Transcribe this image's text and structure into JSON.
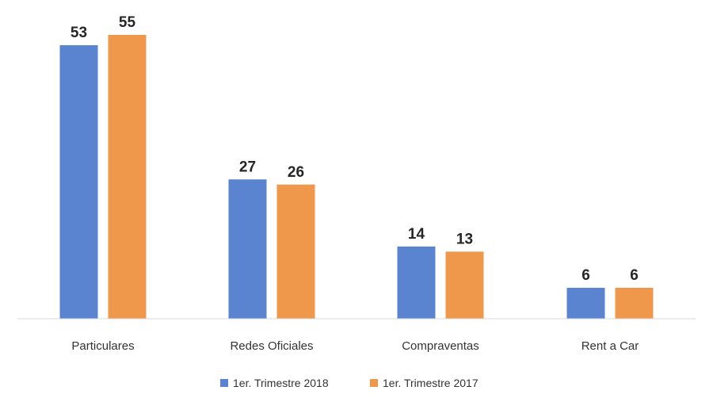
{
  "chart_data": {
    "type": "bar",
    "categories": [
      "Particulares",
      "Redes Oficiales",
      "Compraventas",
      "Rent a Car"
    ],
    "series": [
      {
        "name": "1er. Trimestre 2018",
        "color": "#5b84d0",
        "values": [
          53,
          27,
          14,
          6
        ]
      },
      {
        "name": "1er. Trimestre 2017",
        "color": "#ef974a",
        "values": [
          55,
          26,
          13,
          6
        ]
      }
    ],
    "title": "",
    "xlabel": "",
    "ylabel": "",
    "ylim": [
      0,
      55
    ],
    "grid": false,
    "data_labels": true,
    "legend_position": "bottom"
  }
}
